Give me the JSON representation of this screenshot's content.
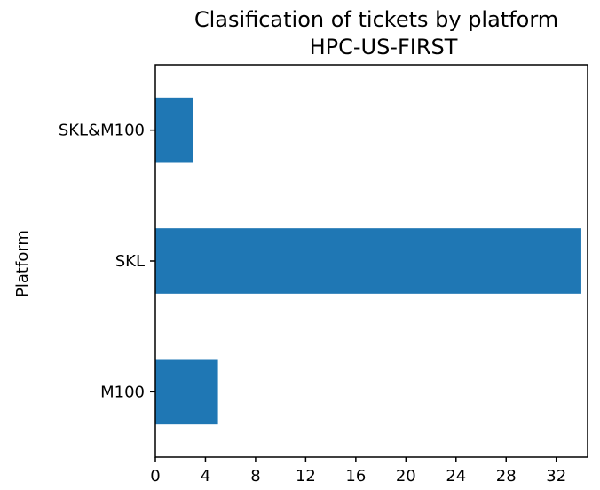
{
  "chart_data": {
    "type": "bar",
    "orientation": "horizontal",
    "title": "Clasification of tickets by platform",
    "subtitle": "HPC-US-FIRST",
    "ylabel": "Platform",
    "xlabel": "",
    "categories": [
      "M100",
      "SKL",
      "SKL&M100"
    ],
    "values": [
      5,
      34,
      3
    ],
    "xlim": [
      0,
      34.5
    ],
    "xticks": [
      0,
      4,
      8,
      12,
      16,
      20,
      24,
      28,
      32
    ],
    "bar_color": "#1f77b4",
    "grid": false,
    "legend": "none"
  }
}
